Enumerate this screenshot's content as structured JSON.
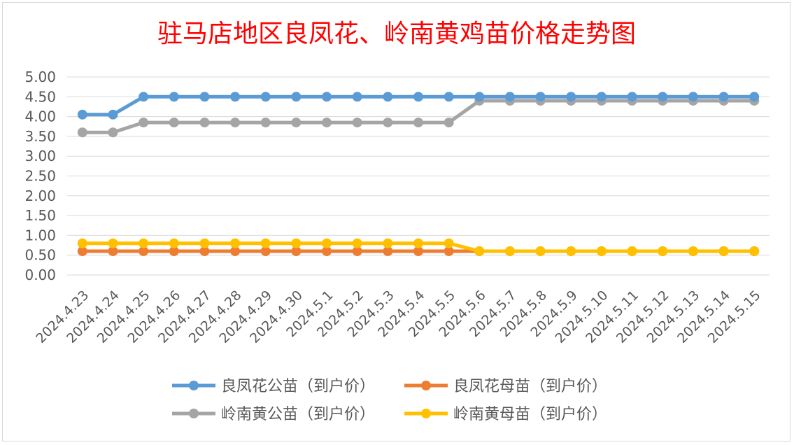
{
  "chart_data": {
    "type": "line",
    "title": "驻马店地区良凤花、岭南黄鸡苗价格走势图",
    "xlabel": "",
    "ylabel": "",
    "ylim": [
      0,
      5
    ],
    "ytick_step": 0.5,
    "ytick_labels": [
      "0.00",
      "0.50",
      "1.00",
      "1.50",
      "2.00",
      "2.50",
      "3.00",
      "3.50",
      "4.00",
      "4.50",
      "5.00"
    ],
    "grid": true,
    "legend_position": "bottom",
    "categories": [
      "2024.4.23",
      "2024.4.24",
      "2024.4.25",
      "2024.4.26",
      "2024.4.27",
      "2024.4.28",
      "2024.4.29",
      "2024.4.30",
      "2024.5.1",
      "2024.5.2",
      "2024.5.3",
      "2024.5.4",
      "2024.5.5",
      "2024.5.6",
      "2024.5.7",
      "2024.5.8",
      "2024.5.9",
      "2024.5.10",
      "2024.5.11",
      "2024.5.12",
      "2024.5.13",
      "2024.5.14",
      "2024.5.15"
    ],
    "series": [
      {
        "name": "良凤花公苗（到户价）",
        "color": "#5b9bd5",
        "values": [
          4.05,
          4.05,
          4.5,
          4.5,
          4.5,
          4.5,
          4.5,
          4.5,
          4.5,
          4.5,
          4.5,
          4.5,
          4.5,
          4.5,
          4.5,
          4.5,
          4.5,
          4.5,
          4.5,
          4.5,
          4.5,
          4.5,
          4.5
        ]
      },
      {
        "name": "良凤花母苗（到户价）",
        "color": "#ed7d31",
        "values": [
          0.6,
          0.6,
          0.6,
          0.6,
          0.6,
          0.6,
          0.6,
          0.6,
          0.6,
          0.6,
          0.6,
          0.6,
          0.6,
          0.6,
          0.6,
          0.6,
          0.6,
          0.6,
          0.6,
          0.6,
          0.6,
          0.6,
          0.6
        ]
      },
      {
        "name": "岭南黄公苗（到户价）",
        "color": "#a5a5a5",
        "values": [
          3.6,
          3.6,
          3.85,
          3.85,
          3.85,
          3.85,
          3.85,
          3.85,
          3.85,
          3.85,
          3.85,
          3.85,
          3.85,
          4.4,
          4.4,
          4.4,
          4.4,
          4.4,
          4.4,
          4.4,
          4.4,
          4.4,
          4.4
        ]
      },
      {
        "name": "岭南黄母苗（到户价）",
        "color": "#ffc000",
        "values": [
          0.8,
          0.8,
          0.8,
          0.8,
          0.8,
          0.8,
          0.8,
          0.8,
          0.8,
          0.8,
          0.8,
          0.8,
          0.8,
          0.6,
          0.6,
          0.6,
          0.6,
          0.6,
          0.6,
          0.6,
          0.6,
          0.6,
          0.6
        ]
      }
    ]
  }
}
